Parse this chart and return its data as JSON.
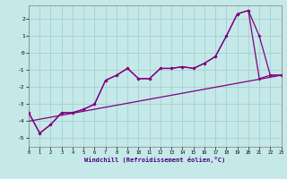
{
  "bg_color": "#c5e8e8",
  "grid_color": "#9ecece",
  "line_color": "#800080",
  "xlabel": "Windchill (Refroidissement éolien,°C)",
  "xlim": [
    0,
    23
  ],
  "ylim": [
    -5.5,
    2.8
  ],
  "xticks": [
    0,
    1,
    2,
    3,
    4,
    5,
    6,
    7,
    8,
    9,
    10,
    11,
    12,
    13,
    14,
    15,
    16,
    17,
    18,
    19,
    20,
    21,
    22,
    23
  ],
  "yticks": [
    -5,
    -4,
    -3,
    -2,
    -1,
    0,
    1,
    2
  ],
  "line1_x": [
    0,
    1,
    2,
    3,
    4,
    5,
    6,
    7,
    8,
    9,
    10,
    11,
    12,
    13,
    14,
    15,
    16,
    17,
    18,
    19,
    20,
    21,
    22,
    23
  ],
  "line1_y": [
    -3.5,
    -4.7,
    -4.2,
    -3.5,
    -3.5,
    -3.3,
    -3.0,
    -1.6,
    -1.3,
    -0.9,
    -1.5,
    -1.5,
    -0.9,
    -0.9,
    -0.8,
    -0.9,
    -0.6,
    -0.2,
    1.0,
    2.3,
    2.5,
    1.0,
    -1.3,
    -1.3
  ],
  "line2_x": [
    0,
    1,
    2,
    3,
    4,
    5,
    6,
    7,
    8,
    9,
    10,
    11,
    12,
    13,
    14,
    15,
    16,
    17,
    18,
    19,
    20,
    21,
    22,
    23
  ],
  "line2_y": [
    -3.5,
    -4.7,
    -4.2,
    -3.5,
    -3.5,
    -3.3,
    -3.0,
    -1.6,
    -1.3,
    -0.9,
    -1.5,
    -1.5,
    -0.9,
    -0.9,
    -0.8,
    -0.9,
    -0.6,
    -0.2,
    1.0,
    2.3,
    2.5,
    -1.5,
    -1.3,
    -1.3
  ],
  "line3_x": [
    0,
    23
  ],
  "line3_y": [
    -4.0,
    -1.3
  ]
}
